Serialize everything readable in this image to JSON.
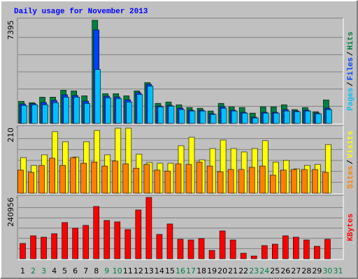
{
  "chart_data": [
    {
      "type": "bar",
      "title": "Daily usage for November 2013",
      "ylim": [
        0,
        7395
      ],
      "yticks": [
        7395
      ],
      "legend_separator": "/",
      "series": [
        {
          "name": "Hits",
          "color": "#008040",
          "values": [
            1588,
            1489,
            1886,
            1886,
            2382,
            2333,
            1985,
            7395,
            2134,
            2134,
            1985,
            2333,
            2928,
            1439,
            1539,
            1340,
            1141,
            1092,
            893,
            1439,
            1191,
            1141,
            744,
            1191,
            1191,
            1340,
            993,
            1141,
            844,
            1687,
            0
          ]
        },
        {
          "name": "Files",
          "color": "#0040ff",
          "values": [
            1400,
            1420,
            1500,
            1650,
            2050,
            2000,
            1600,
            6700,
            1950,
            1900,
            1700,
            2200,
            2800,
            1250,
            1300,
            1100,
            950,
            950,
            700,
            1200,
            950,
            800,
            450,
            800,
            800,
            1000,
            900,
            950,
            750,
            1100,
            0
          ]
        },
        {
          "name": "Pages",
          "color": "#00c0ff",
          "values": [
            1290,
            1340,
            1340,
            1489,
            1886,
            1886,
            1439,
            3871,
            1836,
            1787,
            1539,
            2084,
            2680,
            1191,
            1241,
            993,
            893,
            893,
            645,
            1092,
            893,
            744,
            397,
            744,
            744,
            893,
            844,
            893,
            695,
            993,
            0
          ]
        }
      ]
    },
    {
      "type": "bar",
      "ylim": [
        0,
        210
      ],
      "yticks": [
        210
      ],
      "legend_separator": "/",
      "series": [
        {
          "name": "Visits",
          "color": "#ffff00",
          "values": [
            114,
            89,
            123,
            197,
            165,
            116,
            165,
            201,
            123,
            208,
            208,
            125,
            98,
            96,
            96,
            152,
            179,
            107,
            143,
            170,
            143,
            132,
            143,
            168,
            100,
            105,
            78,
            89,
            92,
            156,
            0
          ]
        },
        {
          "name": "Sites",
          "color": "#ff8000",
          "values": [
            74,
            67,
            89,
            112,
            89,
            114,
            96,
            100,
            87,
            103,
            94,
            80,
            92,
            74,
            71,
            94,
            92,
            100,
            87,
            69,
            76,
            76,
            83,
            87,
            58,
            74,
            76,
            76,
            76,
            67,
            0
          ]
        }
      ]
    },
    {
      "type": "bar",
      "ylim": [
        0,
        240956
      ],
      "yticks": [
        240956
      ],
      "series": [
        {
          "name": "KBytes",
          "color": "#ff0000",
          "values": [
            60239,
            90359,
            84882,
            98573,
            142383,
            120478,
            131430,
            205357,
            150597,
            145121,
            115002,
            191666,
            240956,
            95835,
            136907,
            76668,
            73930,
            79406,
            32858,
            109525,
            73930,
            21905,
            10952,
            52028,
            57500,
            90359,
            84882,
            73930,
            49289,
            76668,
            0
          ]
        }
      ],
      "categories": [
        "1",
        "2",
        "3",
        "4",
        "5",
        "6",
        "7",
        "8",
        "9",
        "10",
        "11",
        "12",
        "13",
        "14",
        "15",
        "16",
        "17",
        "18",
        "19",
        "20",
        "21",
        "22",
        "23",
        "24",
        "25",
        "26",
        "27",
        "28",
        "29",
        "30",
        "31"
      ],
      "category_colors": [
        "#000000",
        "#008040",
        "#008040",
        "#000000",
        "#000000",
        "#000000",
        "#000000",
        "#000000",
        "#008040",
        "#008040",
        "#000000",
        "#000000",
        "#000000",
        "#000000",
        "#000000",
        "#008040",
        "#008040",
        "#000000",
        "#000000",
        "#000000",
        "#000000",
        "#000000",
        "#008040",
        "#008040",
        "#000000",
        "#000000",
        "#000000",
        "#000000",
        "#000000",
        "#008040",
        "#008040"
      ]
    }
  ]
}
